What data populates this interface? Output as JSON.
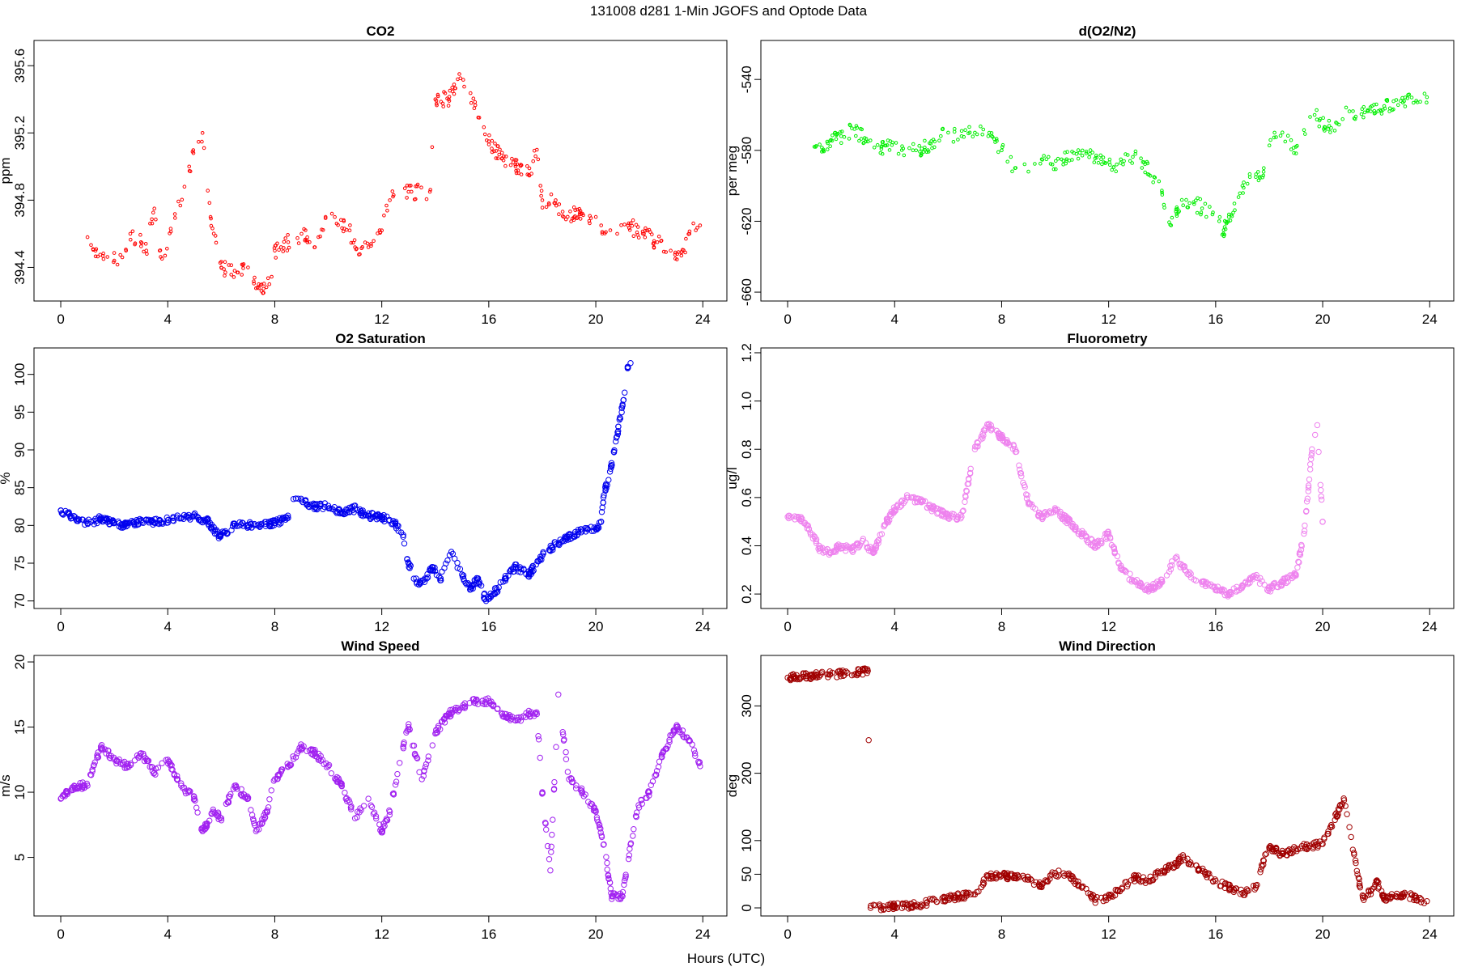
{
  "figure": {
    "title": "131008   d281   1-Min  JGOFS and Optode Data",
    "xlabel": "Hours (UTC)"
  },
  "chart_data": [
    {
      "type": "scatter",
      "title": "CO2",
      "ylabel": "ppm",
      "color": "#ff0000",
      "marker_size": "small",
      "xlim": [
        -1,
        24.9
      ],
      "ylim": [
        394.2,
        395.75
      ],
      "xticks": [
        0,
        4,
        8,
        12,
        16,
        20,
        24
      ],
      "yticks": [
        394.4,
        394.8,
        395.2,
        395.6
      ],
      "ytick_labels": [
        "394.4",
        "394.8",
        "395.2",
        "395.6"
      ],
      "keypoints": [
        [
          1.0,
          394.58
        ],
        [
          1.3,
          394.5
        ],
        [
          1.6,
          394.45
        ],
        [
          2.0,
          394.44
        ],
        [
          2.3,
          394.46
        ],
        [
          2.6,
          394.6
        ],
        [
          3.0,
          394.55
        ],
        [
          3.2,
          394.5
        ],
        [
          3.5,
          394.75
        ],
        [
          3.7,
          394.5
        ],
        [
          3.9,
          394.47
        ],
        [
          4.8,
          395.0
        ],
        [
          5.3,
          395.2
        ],
        [
          5.6,
          394.7
        ],
        [
          6.0,
          394.4
        ],
        [
          6.5,
          394.38
        ],
        [
          7.0,
          394.4
        ],
        [
          7.5,
          394.26
        ],
        [
          7.8,
          394.3
        ],
        [
          8.0,
          394.5
        ],
        [
          8.5,
          394.55
        ],
        [
          9.0,
          394.6
        ],
        [
          9.5,
          394.52
        ],
        [
          9.9,
          394.7
        ],
        [
          10.8,
          394.62
        ],
        [
          11.0,
          394.52
        ],
        [
          11.5,
          394.52
        ],
        [
          12.0,
          394.62
        ],
        [
          12.3,
          394.8
        ],
        [
          13.0,
          394.85
        ],
        [
          13.8,
          394.85
        ],
        [
          14.0,
          395.4
        ],
        [
          14.5,
          395.4
        ],
        [
          14.9,
          395.55
        ],
        [
          16.0,
          395.15
        ],
        [
          16.5,
          395.05
        ],
        [
          17.0,
          395.0
        ],
        [
          17.5,
          394.95
        ],
        [
          17.8,
          395.1
        ],
        [
          18.0,
          394.8
        ],
        [
          18.5,
          394.8
        ],
        [
          18.8,
          394.7
        ],
        [
          19.5,
          394.72
        ],
        [
          20.2,
          394.65
        ],
        [
          20.8,
          394.6
        ],
        [
          21.2,
          394.65
        ],
        [
          21.8,
          394.6
        ],
        [
          22.3,
          394.55
        ],
        [
          22.8,
          394.5
        ],
        [
          23.2,
          394.47
        ],
        [
          23.5,
          394.6
        ],
        [
          23.9,
          394.65
        ]
      ]
    },
    {
      "type": "scatter",
      "title": "d(O2/N2)",
      "ylabel": "per meg",
      "color": "#00ee00",
      "marker_size": "small",
      "xlim": [
        -1,
        24.9
      ],
      "ylim": [
        -665,
        -518
      ],
      "xticks": [
        0,
        4,
        8,
        12,
        16,
        20,
        24
      ],
      "yticks": [
        -660,
        -620,
        -580,
        -540
      ],
      "ytick_labels": [
        "-660",
        "-620",
        "-580",
        "-540"
      ],
      "keypoints": [
        [
          1.0,
          -578
        ],
        [
          1.5,
          -576
        ],
        [
          2.0,
          -572
        ],
        [
          2.5,
          -568
        ],
        [
          3.0,
          -575
        ],
        [
          3.5,
          -578
        ],
        [
          3.9,
          -577
        ],
        [
          4.8,
          -580
        ],
        [
          5.5,
          -575
        ],
        [
          6.0,
          -570
        ],
        [
          6.5,
          -572
        ],
        [
          7.0,
          -570
        ],
        [
          7.5,
          -572
        ],
        [
          8.0,
          -580
        ],
        [
          8.5,
          -590
        ],
        [
          9.0,
          -592
        ],
        [
          9.5,
          -585
        ],
        [
          9.9,
          -588
        ],
        [
          10.8,
          -582
        ],
        [
          11.3,
          -582
        ],
        [
          11.8,
          -584
        ],
        [
          12.3,
          -588
        ],
        [
          13.0,
          -582
        ],
        [
          13.7,
          -595
        ],
        [
          14.0,
          -605
        ],
        [
          14.3,
          -622
        ],
        [
          14.6,
          -615
        ],
        [
          14.9,
          -608
        ],
        [
          15.9,
          -615
        ],
        [
          16.3,
          -625
        ],
        [
          16.7,
          -610
        ],
        [
          17.0,
          -600
        ],
        [
          17.5,
          -595
        ],
        [
          17.8,
          -590
        ],
        [
          18.2,
          -570
        ],
        [
          18.6,
          -575
        ],
        [
          19.0,
          -578
        ],
        [
          19.7,
          -560
        ],
        [
          20.2,
          -568
        ],
        [
          21.0,
          -558
        ],
        [
          21.8,
          -558
        ],
        [
          22.3,
          -555
        ],
        [
          23.0,
          -553
        ],
        [
          23.5,
          -552
        ],
        [
          23.9,
          -550
        ]
      ]
    },
    {
      "type": "scatter",
      "title": "O2 Saturation",
      "ylabel": "%",
      "color": "#0000ee",
      "marker_size": "large",
      "xlim": [
        -1,
        24.9
      ],
      "ylim": [
        69,
        103.5
      ],
      "xticks": [
        0,
        4,
        8,
        12,
        16,
        20,
        24
      ],
      "yticks": [
        70,
        75,
        80,
        85,
        90,
        95,
        100
      ],
      "ytick_labels": [
        "70",
        "75",
        "80",
        "85",
        "90",
        "95",
        "100"
      ],
      "keypoints": [
        [
          0.0,
          82.0
        ],
        [
          0.3,
          81.5
        ],
        [
          0.6,
          80.6
        ],
        [
          1.0,
          80.3
        ],
        [
          1.5,
          80.9
        ],
        [
          2.0,
          80.3
        ],
        [
          2.5,
          80.0
        ],
        [
          3.0,
          80.6
        ],
        [
          3.5,
          80.4
        ],
        [
          4.0,
          80.7
        ],
        [
          4.5,
          81.0
        ],
        [
          5.0,
          81.2
        ],
        [
          5.5,
          80.5
        ],
        [
          5.9,
          78.6
        ],
        [
          6.2,
          79.0
        ],
        [
          6.5,
          80.2
        ],
        [
          7.0,
          80.1
        ],
        [
          7.5,
          80.2
        ],
        [
          8.0,
          80.3
        ],
        [
          8.5,
          81.0
        ],
        [
          8.7,
          83.5
        ],
        [
          9.0,
          83.3
        ],
        [
          9.5,
          82.4
        ],
        [
          10.0,
          82.6
        ],
        [
          10.5,
          81.6
        ],
        [
          11.0,
          82.2
        ],
        [
          11.5,
          81.3
        ],
        [
          12.0,
          81.1
        ],
        [
          12.5,
          80.3
        ],
        [
          12.8,
          78.5
        ],
        [
          13.0,
          75.0
        ],
        [
          13.3,
          72.5
        ],
        [
          13.6,
          72.5
        ],
        [
          13.9,
          74.5
        ],
        [
          14.2,
          73.0
        ],
        [
          14.6,
          76.5
        ],
        [
          15.0,
          73.5
        ],
        [
          15.3,
          71.5
        ],
        [
          15.6,
          73.0
        ],
        [
          15.9,
          70.0
        ],
        [
          16.3,
          71.5
        ],
        [
          16.6,
          73.0
        ],
        [
          17.0,
          74.5
        ],
        [
          17.5,
          73.5
        ],
        [
          18.0,
          76.0
        ],
        [
          18.5,
          77.5
        ],
        [
          19.0,
          78.5
        ],
        [
          19.5,
          79.3
        ],
        [
          20.0,
          79.5
        ],
        [
          20.2,
          80.5
        ],
        [
          20.3,
          84.0
        ],
        [
          20.6,
          88.0
        ],
        [
          21.0,
          96.0
        ],
        [
          21.2,
          101.0
        ],
        [
          21.3,
          101.5
        ]
      ]
    },
    {
      "type": "scatter",
      "title": "Fluorometry",
      "ylabel": "ug/l",
      "color": "#ee82ee",
      "marker_size": "large",
      "xlim": [
        -1,
        24.9
      ],
      "ylim": [
        0.14,
        1.22
      ],
      "xticks": [
        0,
        4,
        8,
        12,
        16,
        20,
        24
      ],
      "yticks": [
        0.2,
        0.4,
        0.6,
        0.8,
        1.0,
        1.2
      ],
      "ytick_labels": [
        "0.2",
        "0.4",
        "0.6",
        "0.8",
        "1.0",
        "1.2"
      ],
      "keypoints": [
        [
          0.0,
          0.52
        ],
        [
          0.4,
          0.52
        ],
        [
          0.8,
          0.47
        ],
        [
          1.2,
          0.39
        ],
        [
          1.6,
          0.37
        ],
        [
          2.0,
          0.4
        ],
        [
          2.4,
          0.38
        ],
        [
          2.8,
          0.42
        ],
        [
          3.2,
          0.37
        ],
        [
          3.6,
          0.48
        ],
        [
          4.0,
          0.55
        ],
        [
          4.5,
          0.6
        ],
        [
          5.0,
          0.58
        ],
        [
          5.5,
          0.55
        ],
        [
          6.0,
          0.52
        ],
        [
          6.5,
          0.52
        ],
        [
          7.0,
          0.8
        ],
        [
          7.5,
          0.9
        ],
        [
          8.0,
          0.85
        ],
        [
          8.5,
          0.8
        ],
        [
          9.0,
          0.58
        ],
        [
          9.5,
          0.52
        ],
        [
          10.0,
          0.55
        ],
        [
          10.5,
          0.5
        ],
        [
          11.0,
          0.45
        ],
        [
          11.5,
          0.4
        ],
        [
          12.0,
          0.45
        ],
        [
          12.5,
          0.3
        ],
        [
          13.0,
          0.25
        ],
        [
          13.5,
          0.22
        ],
        [
          14.0,
          0.25
        ],
        [
          14.5,
          0.35
        ],
        [
          15.0,
          0.28
        ],
        [
          15.5,
          0.25
        ],
        [
          16.0,
          0.22
        ],
        [
          16.5,
          0.2
        ],
        [
          17.0,
          0.23
        ],
        [
          17.5,
          0.27
        ],
        [
          18.0,
          0.22
        ],
        [
          18.5,
          0.25
        ],
        [
          19.0,
          0.28
        ],
        [
          19.3,
          0.45
        ],
        [
          19.6,
          0.8
        ],
        [
          19.8,
          0.9
        ],
        [
          20.0,
          0.5
        ]
      ]
    },
    {
      "type": "scatter",
      "title": "Wind Speed",
      "ylabel": "m/s",
      "color": "#a020f0",
      "marker_size": "large",
      "xlim": [
        -1,
        24.9
      ],
      "ylim": [
        0.5,
        20.5
      ],
      "xticks": [
        0,
        4,
        8,
        12,
        16,
        20,
        24
      ],
      "yticks": [
        5,
        10,
        15,
        20
      ],
      "ytick_labels": [
        "5",
        "10",
        "15",
        "20"
      ],
      "keypoints": [
        [
          0.0,
          9.5
        ],
        [
          0.5,
          10.5
        ],
        [
          1.0,
          10.5
        ],
        [
          1.5,
          13.5
        ],
        [
          2.0,
          12.5
        ],
        [
          2.5,
          12.0
        ],
        [
          3.0,
          13.0
        ],
        [
          3.5,
          11.5
        ],
        [
          4.0,
          12.5
        ],
        [
          4.5,
          10.5
        ],
        [
          5.0,
          9.5
        ],
        [
          5.3,
          7.0
        ],
        [
          5.7,
          8.5
        ],
        [
          6.0,
          8.0
        ],
        [
          6.5,
          10.5
        ],
        [
          7.0,
          9.5
        ],
        [
          7.3,
          7.0
        ],
        [
          7.7,
          8.5
        ],
        [
          8.0,
          11.0
        ],
        [
          8.5,
          12.0
        ],
        [
          9.0,
          13.5
        ],
        [
          9.5,
          13.0
        ],
        [
          10.0,
          12.0
        ],
        [
          10.5,
          10.5
        ],
        [
          11.0,
          8.0
        ],
        [
          11.5,
          9.5
        ],
        [
          12.0,
          7.0
        ],
        [
          12.3,
          8.5
        ],
        [
          12.8,
          13.5
        ],
        [
          13.0,
          15.0
        ],
        [
          13.5,
          11.0
        ],
        [
          14.0,
          14.5
        ],
        [
          14.5,
          16.0
        ],
        [
          15.0,
          16.5
        ],
        [
          15.5,
          17.0
        ],
        [
          16.0,
          17.0
        ],
        [
          16.5,
          16.0
        ],
        [
          17.0,
          15.5
        ],
        [
          17.5,
          16.0
        ],
        [
          17.8,
          16.0
        ],
        [
          18.0,
          10.0
        ],
        [
          18.3,
          4.0
        ],
        [
          18.6,
          17.5
        ],
        [
          19.0,
          11.0
        ],
        [
          19.5,
          10.0
        ],
        [
          20.0,
          8.5
        ],
        [
          20.3,
          6.0
        ],
        [
          20.6,
          2.0
        ],
        [
          21.0,
          2.0
        ],
        [
          21.3,
          6.0
        ],
        [
          21.6,
          9.0
        ],
        [
          22.0,
          10.0
        ],
        [
          22.5,
          13.0
        ],
        [
          23.0,
          15.0
        ],
        [
          23.5,
          14.0
        ],
        [
          23.9,
          12.0
        ]
      ]
    },
    {
      "type": "scatter",
      "title": "Wind Direction",
      "ylabel": "deg",
      "color": "#a00000",
      "marker_size": "large",
      "xlim": [
        -1,
        24.9
      ],
      "ylim": [
        -12,
        375
      ],
      "xticks": [
        0,
        4,
        8,
        12,
        16,
        20,
        24
      ],
      "yticks": [
        0,
        50,
        100,
        200,
        300
      ],
      "ytick_labels": [
        "0",
        "50",
        "100",
        "200",
        "300"
      ],
      "keypoints": [
        [
          0.0,
          342
        ],
        [
          1.0,
          345
        ],
        [
          2.0,
          348
        ],
        [
          3.0,
          352
        ],
        [
          3.1,
          0
        ],
        [
          4.0,
          2
        ],
        [
          5.0,
          5
        ],
        [
          5.5,
          12
        ],
        [
          6.0,
          15
        ],
        [
          7.0,
          20
        ],
        [
          7.5,
          48
        ],
        [
          8.0,
          48
        ],
        [
          8.5,
          45
        ],
        [
          9.0,
          42
        ],
        [
          9.5,
          35
        ],
        [
          10.0,
          52
        ],
        [
          10.5,
          48
        ],
        [
          11.0,
          30
        ],
        [
          11.5,
          12
        ],
        [
          12.0,
          15
        ],
        [
          12.5,
          30
        ],
        [
          13.0,
          45
        ],
        [
          13.5,
          40
        ],
        [
          14.0,
          55
        ],
        [
          14.5,
          65
        ],
        [
          14.8,
          75
        ],
        [
          15.5,
          55
        ],
        [
          16.0,
          40
        ],
        [
          16.5,
          30
        ],
        [
          17.0,
          22
        ],
        [
          17.5,
          30
        ],
        [
          17.8,
          70
        ],
        [
          18.0,
          90
        ],
        [
          18.5,
          80
        ],
        [
          19.0,
          88
        ],
        [
          19.5,
          92
        ],
        [
          20.0,
          95
        ],
        [
          20.3,
          120
        ],
        [
          20.8,
          160
        ],
        [
          21.0,
          120
        ],
        [
          21.3,
          50
        ],
        [
          21.5,
          15
        ],
        [
          21.8,
          25
        ],
        [
          22.0,
          40
        ],
        [
          22.3,
          15
        ],
        [
          23.0,
          20
        ],
        [
          23.5,
          15
        ],
        [
          23.9,
          10
        ]
      ]
    }
  ]
}
